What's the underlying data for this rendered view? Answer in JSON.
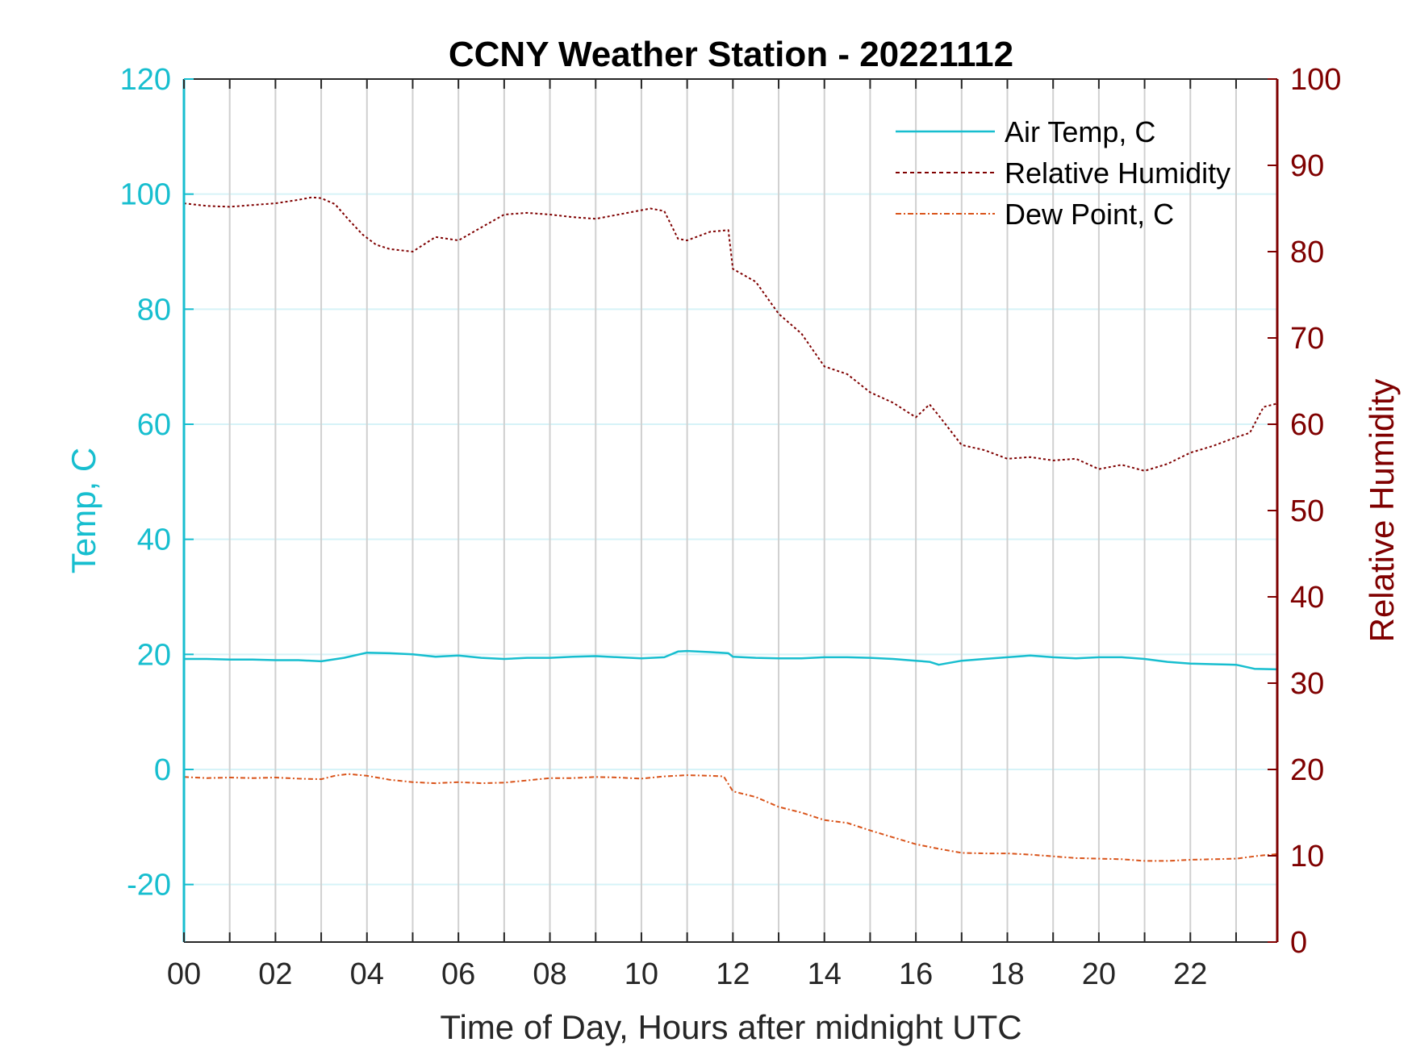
{
  "chart_data": {
    "type": "line",
    "title": "CCNY Weather Station - 20221112",
    "xlabel": "Time of Day, Hours after midnight UTC",
    "ylabel_left": "Temp, C",
    "ylabel_right": "Relative Humidity",
    "xlim": [
      0,
      23.9
    ],
    "ylim_left": [
      -30,
      120
    ],
    "ylim_right": [
      0,
      100
    ],
    "xticks": [
      0,
      2,
      4,
      6,
      8,
      10,
      12,
      14,
      16,
      18,
      20,
      22
    ],
    "xtick_labels": [
      "00",
      "02",
      "04",
      "06",
      "08",
      "10",
      "12",
      "14",
      "16",
      "18",
      "20",
      "22"
    ],
    "yticks_left": [
      -20,
      0,
      20,
      40,
      60,
      80,
      100,
      120
    ],
    "yticks_right": [
      0,
      10,
      20,
      30,
      40,
      50,
      60,
      70,
      80,
      90,
      100
    ],
    "grid": {
      "vertical_hourly": true,
      "horizontal_left_ticks": true
    },
    "legend_position": "top-right",
    "colors": {
      "left_axis": "#17becf",
      "right_axis": "#7f0000",
      "air_temp": "#17becf",
      "relative_humidity": "#7f0000",
      "dew_point": "#d95319",
      "grid_vertical": "#d0d0d0",
      "grid_horizontal": "#d6f3f8"
    },
    "series": [
      {
        "name": "Air Temp, C",
        "axis": "left",
        "style": "solid",
        "x": [
          0,
          0.5,
          1,
          1.5,
          2,
          2.5,
          3,
          3.5,
          4,
          4.5,
          5,
          5.5,
          6,
          6.5,
          7,
          7.5,
          8,
          8.5,
          9,
          9.5,
          10,
          10.5,
          10.8,
          11,
          11.5,
          11.9,
          12,
          12.5,
          13,
          13.5,
          14,
          14.5,
          15,
          15.5,
          16,
          16.3,
          16.5,
          17,
          17.5,
          18,
          18.5,
          19,
          19.5,
          20,
          20.5,
          21,
          21.5,
          22,
          22.5,
          23,
          23.4,
          23.9
        ],
        "y": [
          19.2,
          19.2,
          19.1,
          19.1,
          19.0,
          19.0,
          18.8,
          19.4,
          20.3,
          20.2,
          20.0,
          19.6,
          19.8,
          19.4,
          19.2,
          19.4,
          19.4,
          19.6,
          19.7,
          19.5,
          19.3,
          19.5,
          20.5,
          20.6,
          20.4,
          20.2,
          19.6,
          19.4,
          19.3,
          19.3,
          19.5,
          19.5,
          19.4,
          19.2,
          18.9,
          18.7,
          18.2,
          18.9,
          19.2,
          19.5,
          19.8,
          19.5,
          19.3,
          19.5,
          19.5,
          19.2,
          18.7,
          18.4,
          18.3,
          18.2,
          17.5,
          17.4
        ]
      },
      {
        "name": "Relative Humidity",
        "axis": "right",
        "style": "dotted",
        "x": [
          0,
          0.5,
          1,
          1.5,
          2,
          2.5,
          2.8,
          3.0,
          3.3,
          3.6,
          3.9,
          4.2,
          4.5,
          5.0,
          5.5,
          6.0,
          6.5,
          7.0,
          7.5,
          8.0,
          8.5,
          9.0,
          9.5,
          10.0,
          10.2,
          10.5,
          10.8,
          11.0,
          11.5,
          11.9,
          12.0,
          12.5,
          13.0,
          13.5,
          14.0,
          14.5,
          15.0,
          15.5,
          16.0,
          16.3,
          16.5,
          17.0,
          17.5,
          18.0,
          18.5,
          19.0,
          19.5,
          20.0,
          20.5,
          21.0,
          21.5,
          22.0,
          22.5,
          23.0,
          23.3,
          23.6,
          23.9
        ],
        "y": [
          85.6,
          85.3,
          85.2,
          85.4,
          85.6,
          86.0,
          86.3,
          86.2,
          85.5,
          83.7,
          82.0,
          80.8,
          80.3,
          80.0,
          81.7,
          81.3,
          82.8,
          84.3,
          84.5,
          84.3,
          84.0,
          83.8,
          84.3,
          84.8,
          85.0,
          84.7,
          81.5,
          81.3,
          82.3,
          82.5,
          78.0,
          76.5,
          72.8,
          70.5,
          66.7,
          65.8,
          63.7,
          62.5,
          60.8,
          62.3,
          61.0,
          57.6,
          57.0,
          56.0,
          56.2,
          55.8,
          56.0,
          54.8,
          55.3,
          54.6,
          55.4,
          56.7,
          57.5,
          58.5,
          59.0,
          62.0,
          62.4
        ]
      },
      {
        "name": "Dew Point, C",
        "axis": "left",
        "style": "dash-dot",
        "x": [
          0,
          0.5,
          1,
          1.5,
          2,
          2.5,
          3,
          3.3,
          3.6,
          4.0,
          4.5,
          5.0,
          5.5,
          6.0,
          6.5,
          7.0,
          7.5,
          8.0,
          8.5,
          9.0,
          9.5,
          10.0,
          10.5,
          11.0,
          11.5,
          11.8,
          12.0,
          12.5,
          13.0,
          13.5,
          14.0,
          14.5,
          15.0,
          15.5,
          16.0,
          16.5,
          17.0,
          17.5,
          18.0,
          18.5,
          19.0,
          19.5,
          20.0,
          20.5,
          21.0,
          21.5,
          22.0,
          22.5,
          23.0,
          23.5,
          23.9
        ],
        "y": [
          -1.3,
          -1.5,
          -1.4,
          -1.5,
          -1.4,
          -1.6,
          -1.7,
          -1.1,
          -0.8,
          -1.1,
          -1.8,
          -2.2,
          -2.4,
          -2.2,
          -2.4,
          -2.3,
          -1.9,
          -1.5,
          -1.5,
          -1.3,
          -1.4,
          -1.6,
          -1.2,
          -1.0,
          -1.1,
          -1.2,
          -3.8,
          -4.8,
          -6.5,
          -7.5,
          -8.8,
          -9.3,
          -10.6,
          -11.8,
          -13.0,
          -13.8,
          -14.5,
          -14.6,
          -14.6,
          -14.8,
          -15.1,
          -15.4,
          -15.5,
          -15.6,
          -15.9,
          -15.9,
          -15.7,
          -15.6,
          -15.5,
          -15.0,
          -14.7
        ]
      }
    ]
  }
}
